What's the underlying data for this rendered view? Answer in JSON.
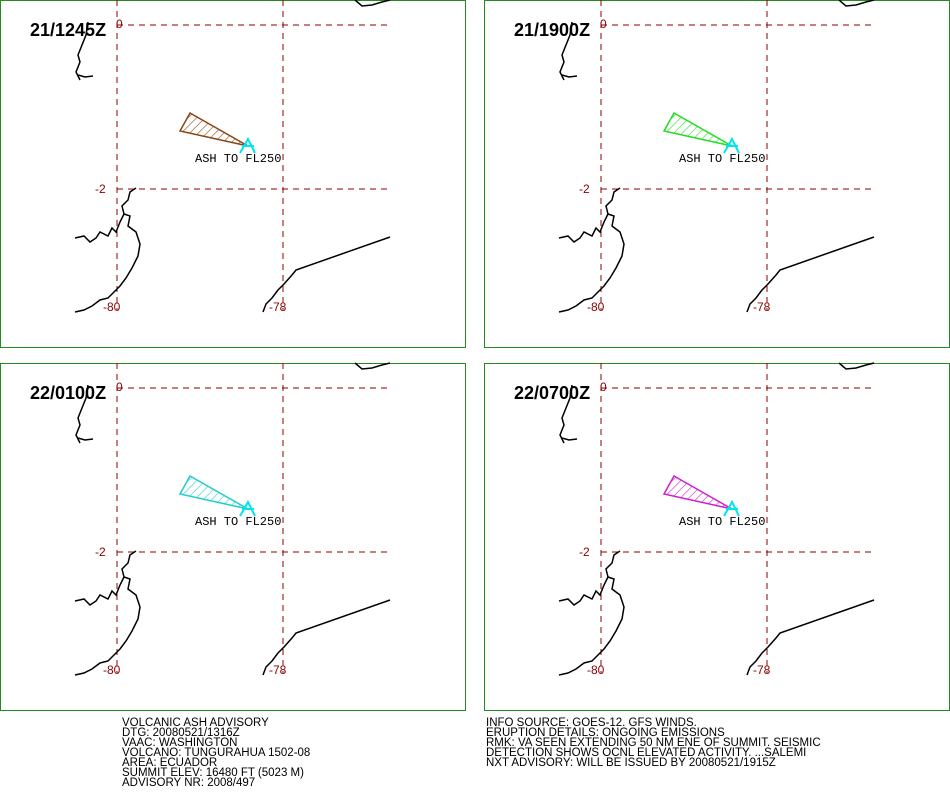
{
  "panels": [
    {
      "time": "21/1245Z",
      "color": "#8b4513",
      "label": "ASH TO FL250"
    },
    {
      "time": "21/1900Z",
      "color": "#22dd22",
      "label": "ASH TO FL250"
    },
    {
      "time": "22/0100Z",
      "color": "#22cccc",
      "label": "ASH TO FL250"
    },
    {
      "time": "22/0700Z",
      "color": "#cc22cc",
      "label": "ASH TO FL250"
    }
  ],
  "grid": {
    "lat_labels": [
      "0",
      "-2"
    ],
    "lon_labels": [
      "-80",
      "-78"
    ]
  },
  "advisory": {
    "left": [
      "VOLCANIC ASH ADVISORY",
      "DTG: 20080521/1316Z",
      "VAAC: WASHINGTON",
      "VOLCANO: TUNGURAHUA 1502-08",
      "AREA: ECUADOR",
      "SUMMIT ELEV: 16480 FT (5023 M)",
      "ADVISORY NR: 2008/497"
    ],
    "right": [
      "INFO SOURCE: GOES-12. GFS WINDS.",
      "ERUPTION DETAILS: ONGOING EMISSIONS",
      "RMK: VA SEEN EXTENDING 50 NM ENE OF SUMMIT. SEISMIC",
      "DETECTION SHOWS OCNL ELEVATED ACTIVITY. ...SALEMI",
      "NXT ADVISORY: WILL BE ISSUED BY 20080521/1915Z"
    ]
  }
}
